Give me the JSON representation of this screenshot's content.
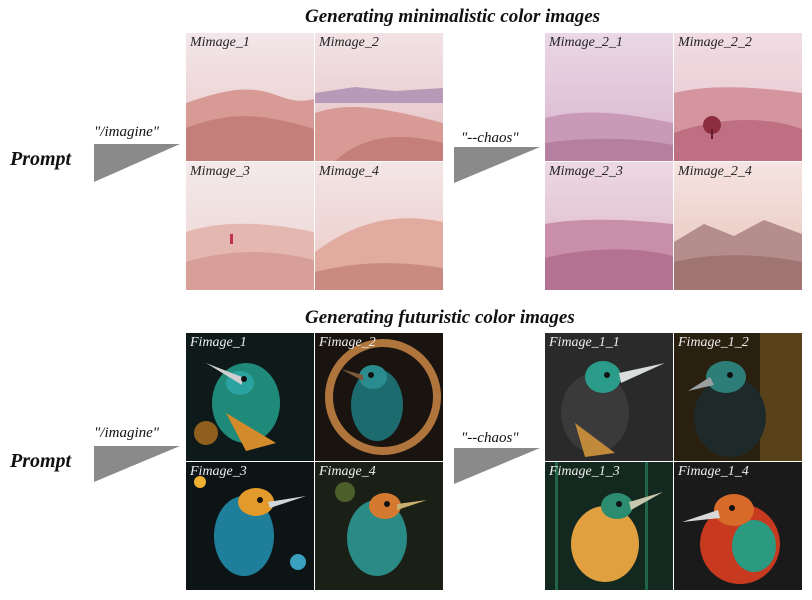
{
  "sections": {
    "minimal": {
      "title": "Generating minimalistic color images",
      "prompt": "Prompt",
      "imagine": "\"/imagine\"",
      "chaos": "\"--chaos\"",
      "grid_a": [
        "Mimage_1",
        "Mimage_2",
        "Mimage_3",
        "Mimage_4"
      ],
      "grid_b": [
        "Mimage_2_1",
        "Mimage_2_2",
        "Mimage_2_3",
        "Mimage_2_4"
      ]
    },
    "futuristic": {
      "title": "Generating futuristic color images",
      "prompt": "Prompt",
      "imagine": "\"/imagine\"",
      "chaos": "\"--chaos\"",
      "grid_a": [
        "Fimage_1",
        "Fimage_2",
        "Fimage_3",
        "Fimage_4"
      ],
      "grid_b": [
        "Fimage_1_1",
        "Fimage_1_2",
        "Fimage_1_3",
        "Fimage_1_4"
      ]
    }
  },
  "colors": {
    "selection": "#d8202a",
    "arrow": "#8a8a8a"
  }
}
